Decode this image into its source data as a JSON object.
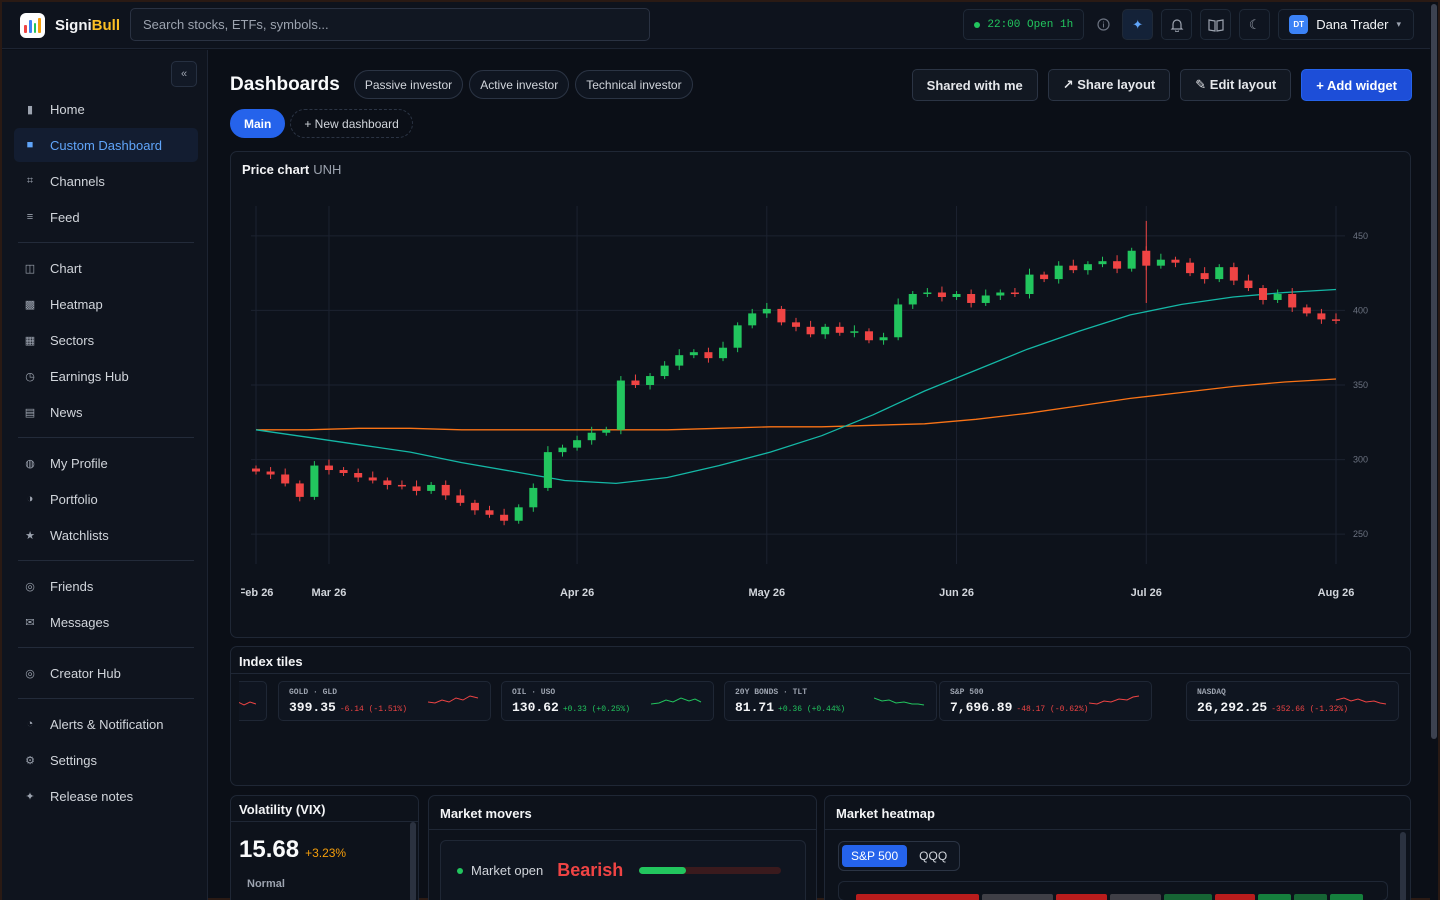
{
  "app": {
    "logo_text_1": "Signi",
    "logo_text_2": "Bull",
    "search_placeholder": "Search stocks, ETFs, symbols..."
  },
  "topbar": {
    "market_time": "22:00 Open 1h",
    "user_initials": "DT",
    "user_name": "Dana Trader"
  },
  "sidebar": {
    "collapse_label": "«",
    "groups": [
      [
        {
          "label": "Home",
          "icon": "▮",
          "icon_name": "home-icon"
        },
        {
          "label": "Custom Dashboard",
          "icon": "■",
          "icon_name": "dashboard-icon",
          "active": true
        },
        {
          "label": "Channels",
          "icon": "⌗",
          "icon_name": "channels-icon"
        },
        {
          "label": "Feed",
          "icon": "≡",
          "icon_name": "feed-icon"
        }
      ],
      [
        {
          "label": "Chart",
          "icon": "◫",
          "icon_name": "chart-icon"
        },
        {
          "label": "Heatmap",
          "icon": "▩",
          "icon_name": "heatmap-icon"
        },
        {
          "label": "Sectors",
          "icon": "▦",
          "icon_name": "sectors-icon"
        },
        {
          "label": "Earnings Hub",
          "icon": "◷",
          "icon_name": "earnings-icon"
        },
        {
          "label": "News",
          "icon": "▤",
          "icon_name": "news-icon"
        }
      ],
      [
        {
          "label": "My Profile",
          "icon": "◍",
          "icon_name": "profile-icon"
        },
        {
          "label": "Portfolio",
          "icon": "◑",
          "icon_name": "portfolio-icon"
        },
        {
          "label": "Watchlists",
          "icon": "★",
          "icon_name": "watchlist-star-icon"
        }
      ],
      [
        {
          "label": "Friends",
          "icon": "◎",
          "icon_name": "friends-icon"
        },
        {
          "label": "Messages",
          "icon": "✉",
          "icon_name": "messages-icon"
        }
      ],
      [
        {
          "label": "Creator Hub",
          "icon": "◎",
          "icon_name": "creator-hub-icon"
        }
      ],
      [
        {
          "label": "Alerts & Notification",
          "icon": "◔",
          "icon_name": "alerts-icon"
        },
        {
          "label": "Settings",
          "icon": "⚙",
          "icon_name": "settings-gear-icon"
        },
        {
          "label": "Release notes",
          "icon": "✦",
          "icon_name": "release-notes-icon"
        }
      ]
    ]
  },
  "header": {
    "title": "Dashboards",
    "presets": [
      "Passive investor",
      "Active investor",
      "Technical investor"
    ],
    "shared_label": "Shared with me",
    "share_label": "↗ Share layout",
    "edit_label": "✎ Edit layout",
    "add_label": "+ Add widget",
    "tabs": [
      {
        "label": "Main",
        "active": true
      },
      {
        "label": "+ New dashboard",
        "active": false
      }
    ]
  },
  "price_chart": {
    "title": "Price chart",
    "symbol": "UNH"
  },
  "chart_data": {
    "type": "candlestick",
    "ylim": [
      230,
      470
    ],
    "y_ticks": [
      250,
      300,
      350,
      400,
      450
    ],
    "x_ticks": [
      "Feb 26",
      "Mar 26",
      "Apr 26",
      "May 26",
      "Jun 26",
      "Jul 26",
      "Aug 26"
    ],
    "ma_teal": [
      320,
      315,
      310,
      305,
      298,
      292,
      286,
      284,
      288,
      296,
      305,
      316,
      330,
      346,
      360,
      374,
      386,
      397,
      404,
      409,
      412,
      414
    ],
    "ma_orange": [
      320,
      320,
      321,
      321,
      320,
      320,
      320,
      320,
      320,
      321,
      322,
      322,
      323,
      324,
      327,
      331,
      336,
      341,
      345,
      349,
      352,
      354
    ],
    "closes": [
      292,
      290,
      284,
      275,
      296,
      293,
      291,
      288,
      286,
      283,
      282,
      279,
      283,
      276,
      271,
      266,
      263,
      259,
      268,
      281,
      305,
      308,
      313,
      318,
      320,
      353,
      350,
      356,
      363,
      370,
      372,
      368,
      375,
      390,
      398,
      401,
      392,
      389,
      384,
      389,
      385,
      386,
      380,
      382,
      404,
      411,
      412,
      409,
      411,
      405,
      410,
      412,
      411,
      424,
      421,
      430,
      427,
      431,
      433,
      428,
      440,
      430,
      434,
      432,
      425,
      421,
      429,
      420,
      415,
      407,
      411,
      402,
      398,
      394,
      393
    ]
  },
  "index_tiles": {
    "title": "Index tiles",
    "tiles": [
      {
        "name": "GOLD · GLD",
        "value": "399.35",
        "change": "-6.14 (-1.51%)",
        "dir": "down"
      },
      {
        "name": "OIL · USO",
        "value": "130.62",
        "change": "+0.33 (+0.25%)",
        "dir": "up"
      },
      {
        "name": "20Y BONDS · TLT",
        "value": "81.71",
        "change": "+0.36 (+0.44%)",
        "dir": "up"
      },
      {
        "name": "S&P 500",
        "value": "7,696.89",
        "change": "-48.17 (-0.62%)",
        "dir": "down"
      },
      {
        "name": "NASDAQ",
        "value": "26,292.25",
        "change": "-352.66 (-1.32%)",
        "dir": "down"
      }
    ]
  },
  "vix": {
    "title": "Volatility (VIX)",
    "value": "15.68",
    "change": "+3.23%",
    "regime": "Normal"
  },
  "market_movers": {
    "title": "Market movers",
    "status": "Market open",
    "sentiment": "Bearish",
    "sentiment_level": 0.33
  },
  "market_heatmap": {
    "title": "Market heatmap",
    "options": [
      "S&P 500",
      "QQQ"
    ],
    "selected": "S&P 500"
  },
  "colors": {
    "accent": "#2563eb",
    "up": "#22c55e",
    "down": "#ef4444",
    "ma_teal": "#14b8a6",
    "ma_orange": "#f97316"
  }
}
